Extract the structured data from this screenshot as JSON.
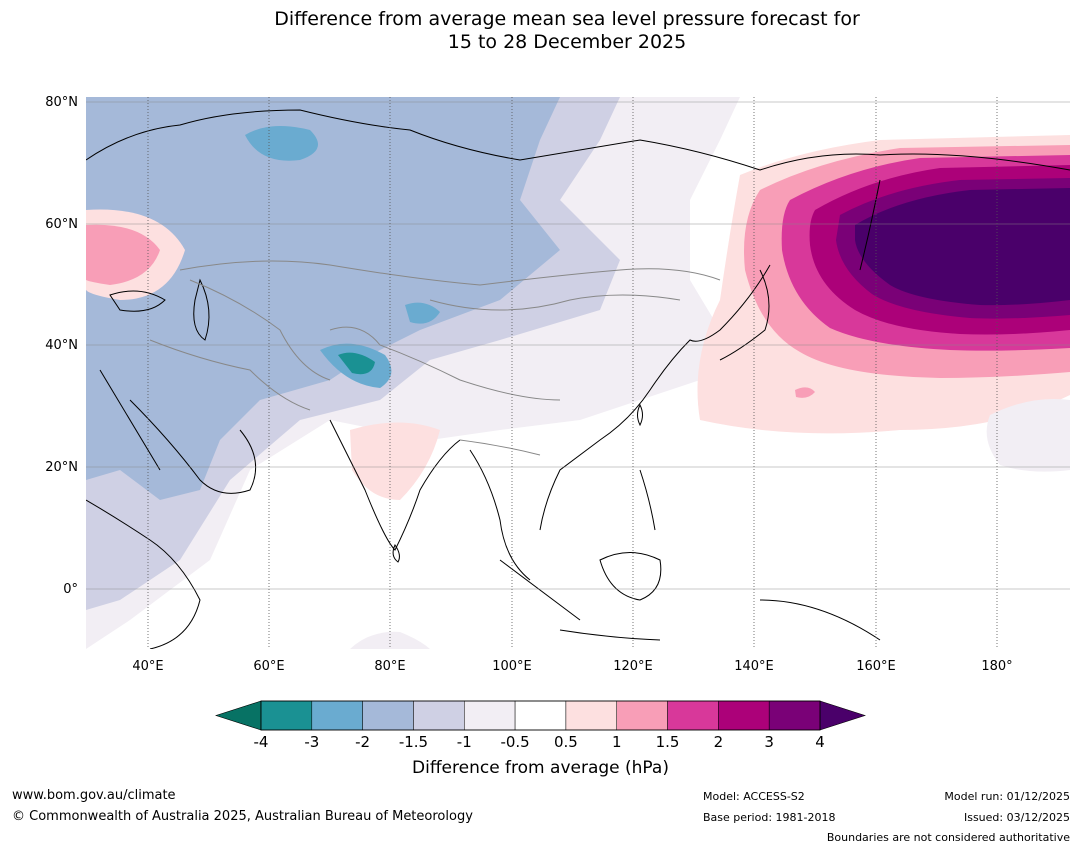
{
  "title": {
    "line1": "Difference from average mean sea level pressure forecast for",
    "line2": "15 to 28 December 2025"
  },
  "map": {
    "lat_labels": [
      "80°N",
      "60°N",
      "40°N",
      "20°N",
      "0°"
    ],
    "lon_labels": [
      "40°E",
      "60°E",
      "80°E",
      "100°E",
      "120°E",
      "140°E",
      "160°E",
      "180°"
    ],
    "extent": {
      "lon_min": 30,
      "lon_max": 192,
      "lat_min": -10,
      "lat_max": 81
    }
  },
  "colorbar": {
    "title": "Difference from average (hPa)",
    "ticks": [
      "-4",
      "-3",
      "-2",
      "-1.5",
      "-1",
      "-0.5",
      "0.5",
      "1",
      "1.5",
      "2",
      "3",
      "4"
    ],
    "colors": [
      "#1a9193",
      "#6aabd0",
      "#a5b9d9",
      "#cfd0e4",
      "#f2eef4",
      "#ffffff",
      "#fde0e0",
      "#f89eb7",
      "#d8389a",
      "#ac0179",
      "#7a0177"
    ],
    "under_color": "#077264",
    "over_color": "#4a006a"
  },
  "footer": {
    "website": "www.bom.gov.au/climate",
    "copyright": "© Commonwealth of Australia 2025, Australian Bureau of Meteorology",
    "model": "Model: ACCESS-S2",
    "base_period": "Base period: 1981-2018",
    "model_run": "Model run: 01/12/2025",
    "issued": "Issued: 03/12/2025",
    "disclaimer": "Boundaries are not considered authoritative"
  }
}
